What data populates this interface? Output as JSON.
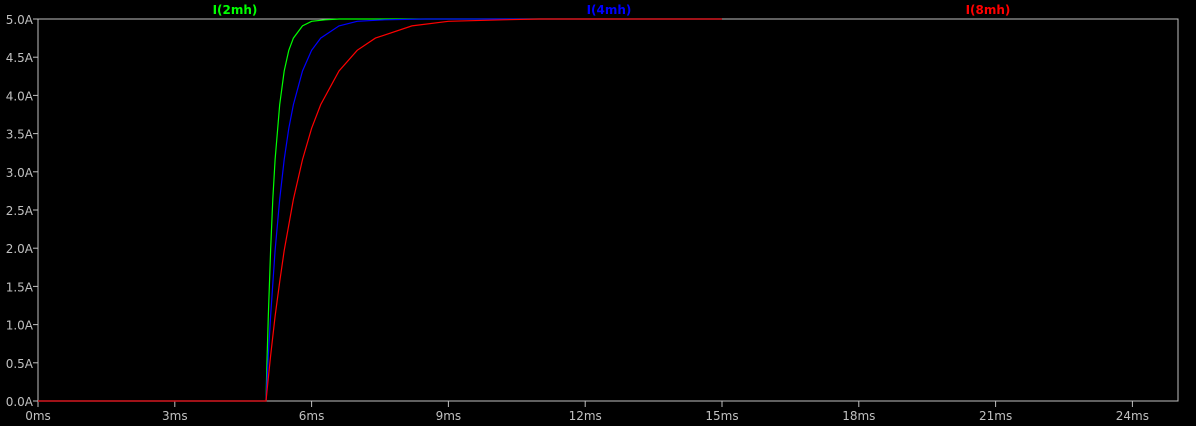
{
  "chart_data": {
    "type": "line",
    "title": "",
    "xlabel": "",
    "ylabel": "",
    "xlim": [
      0,
      25
    ],
    "ylim": [
      0,
      5
    ],
    "grid": false,
    "legend_placement": "top",
    "x_ticks": [
      "0ms",
      "3ms",
      "6ms",
      "9ms",
      "12ms",
      "15ms",
      "18ms",
      "21ms",
      "24ms"
    ],
    "x_tick_values": [
      0,
      3,
      6,
      9,
      12,
      15,
      18,
      21,
      24
    ],
    "y_ticks": [
      "0.0A",
      "0.5A",
      "1.0A",
      "1.5A",
      "2.0A",
      "2.5A",
      "3.0A",
      "3.5A",
      "4.0A",
      "4.5A",
      "5.0A"
    ],
    "y_tick_values": [
      0,
      0.5,
      1,
      1.5,
      2,
      2.5,
      3,
      3.5,
      4,
      4.5,
      5
    ],
    "background": "#000000",
    "axis_color": "#c0c0c0",
    "series": [
      {
        "name": "I(2mh)",
        "color": "#00ff00",
        "x": [
          0,
          5,
          5.02,
          5.05,
          5.1,
          5.15,
          5.2,
          5.3,
          5.4,
          5.5,
          5.6,
          5.8,
          6.0,
          6.3,
          6.6,
          7,
          8,
          15
        ],
        "y": [
          0,
          0,
          0.48,
          1.11,
          1.97,
          2.64,
          3.16,
          3.88,
          4.32,
          4.59,
          4.75,
          4.91,
          4.97,
          4.99,
          5,
          5,
          5,
          5
        ]
      },
      {
        "name": "I(4mh)",
        "color": "#0000ff",
        "x": [
          0,
          5,
          5.02,
          5.05,
          5.1,
          5.2,
          5.3,
          5.4,
          5.5,
          5.6,
          5.8,
          6.0,
          6.2,
          6.6,
          7,
          7.6,
          8.5,
          15
        ],
        "y": [
          0,
          0,
          0.24,
          0.59,
          1.11,
          1.97,
          2.64,
          3.16,
          3.57,
          3.88,
          4.32,
          4.59,
          4.75,
          4.91,
          4.97,
          4.99,
          5,
          5
        ]
      },
      {
        "name": "I(8mh)",
        "color": "#ff0000",
        "x": [
          0,
          5,
          5.05,
          5.1,
          5.2,
          5.3,
          5.4,
          5.6,
          5.8,
          6.0,
          6.2,
          6.6,
          7.0,
          7.4,
          8.2,
          9,
          10.2,
          11,
          15
        ],
        "y": [
          0,
          0,
          0.3,
          0.59,
          1.11,
          1.56,
          1.97,
          2.64,
          3.16,
          3.57,
          3.88,
          4.32,
          4.59,
          4.75,
          4.91,
          4.97,
          4.99,
          5,
          5
        ]
      }
    ]
  }
}
